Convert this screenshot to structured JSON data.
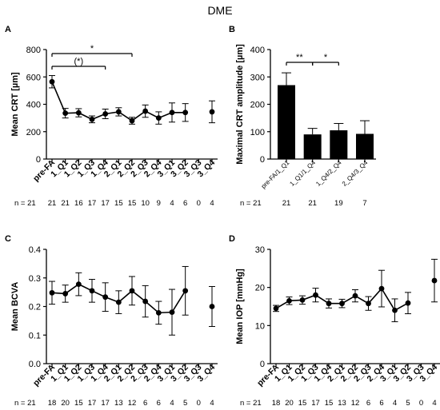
{
  "figure_title": "DME",
  "chart_data": [
    {
      "panel": "A",
      "type": "line",
      "ylabel": "Mean CRT [µm]",
      "xlabel": "",
      "ylim": [
        0,
        800
      ],
      "yticks": [
        0,
        200,
        400,
        600,
        800
      ],
      "categories": [
        "pre-FA",
        "1_Q1",
        "1_Q2",
        "1_Q3",
        "1_Q4",
        "2_Q1",
        "2_Q2",
        "2_Q3",
        "2_Q4",
        "3_Q1",
        "3_Q2",
        "3_Q3",
        "3_Q4"
      ],
      "series": [
        {
          "values": [
            565,
            335,
            338,
            290,
            330,
            345,
            280,
            350,
            300,
            340,
            340,
            null,
            345
          ],
          "errors": [
            45,
            35,
            30,
            25,
            35,
            30,
            25,
            45,
            45,
            70,
            65,
            null,
            80
          ]
        }
      ],
      "connect_until": 10,
      "n_prefix": "n = 21",
      "n_values": [
        "21",
        "21",
        "16",
        "17",
        "17",
        "15",
        "15",
        "10",
        "9",
        "4",
        "6",
        "0",
        "4"
      ],
      "significance": [
        {
          "from": 0,
          "to": 6,
          "label": "*"
        },
        {
          "from": 0,
          "to": 4,
          "label": "(*)"
        }
      ],
      "grid": false
    },
    {
      "panel": "B",
      "type": "bar",
      "ylabel": "Maximal CRT amplitude [µm]",
      "xlabel": "",
      "ylim": [
        0,
        400
      ],
      "yticks": [
        0,
        100,
        200,
        300,
        400
      ],
      "categories": [
        "pre-FA/1_Q1",
        "1_Q1/1_Q4",
        "1_Q4/2_Q4",
        "2_Q4/3_Q4"
      ],
      "series": [
        {
          "values": [
            270,
            90,
            105,
            92
          ],
          "errors": [
            45,
            22,
            25,
            48
          ]
        }
      ],
      "n_prefix": "n = 21",
      "n_values": [
        "21",
        "21",
        "19",
        "7"
      ],
      "significance": [
        {
          "from": 0,
          "to": 1,
          "label": "**"
        },
        {
          "from": 1,
          "to": 2,
          "label": "*"
        }
      ],
      "grid": false
    },
    {
      "panel": "C",
      "type": "line",
      "ylabel": "Mean BCVA",
      "xlabel": "",
      "ylim": [
        0,
        0.4
      ],
      "yticks": [
        "0.0",
        "0.1",
        "0.2",
        "0.3",
        "0.4"
      ],
      "categories": [
        "pre-FA",
        "1_Q1",
        "1_Q2",
        "1_Q3",
        "1_Q4",
        "2_Q1",
        "2_Q2",
        "2_Q3",
        "2_Q4",
        "3_Q1",
        "3_Q2",
        "3_Q3",
        "3_Q4"
      ],
      "series": [
        {
          "values": [
            0.248,
            0.245,
            0.278,
            0.255,
            0.233,
            0.215,
            0.255,
            0.218,
            0.178,
            0.18,
            0.255,
            null,
            0.2
          ],
          "errors": [
            0.04,
            0.03,
            0.04,
            0.04,
            0.05,
            0.04,
            0.05,
            0.055,
            0.04,
            0.08,
            0.085,
            null,
            0.07
          ]
        }
      ],
      "connect_until": 10,
      "n_prefix": "n = 21",
      "n_values": [
        "18",
        "20",
        "15",
        "17",
        "17",
        "13",
        "12",
        "6",
        "6",
        "4",
        "5",
        "0",
        "4"
      ],
      "grid": false
    },
    {
      "panel": "D",
      "type": "line",
      "ylabel": "Mean IOP [mmHg]",
      "xlabel": "",
      "ylim": [
        0,
        30
      ],
      "yticks": [
        0,
        10,
        20,
        30
      ],
      "categories": [
        "pre-FA",
        "1_Q1",
        "1_Q2",
        "1_Q3",
        "1_Q4",
        "2_Q1",
        "2_Q2",
        "2_Q3",
        "2_Q4",
        "3_Q1",
        "3_Q2",
        "3_Q3",
        "3_Q4"
      ],
      "series": [
        {
          "values": [
            14.5,
            16.5,
            16.7,
            18.0,
            15.8,
            15.8,
            17.8,
            15.8,
            19.7,
            14.0,
            15.9,
            null,
            21.8
          ],
          "errors": [
            0.8,
            1.0,
            1.1,
            1.8,
            1.2,
            1.1,
            1.6,
            1.8,
            4.8,
            3.0,
            2.8,
            null,
            5.6
          ]
        }
      ],
      "connect_until": 10,
      "n_prefix": "n = 21",
      "n_values": [
        "18",
        "20",
        "15",
        "17",
        "15",
        "13",
        "12",
        "6",
        "6",
        "4",
        "5",
        "0",
        "4"
      ],
      "grid": false
    }
  ]
}
